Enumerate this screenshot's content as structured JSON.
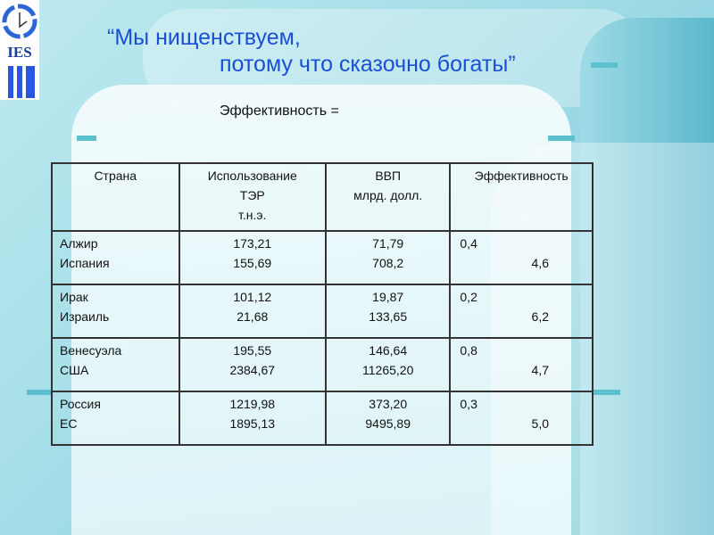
{
  "title": {
    "line1": "“Мы нищенствуем,",
    "line2": "потому что сказочно богаты”"
  },
  "subtitle": "Эффективность =",
  "logo": {
    "text": "IES"
  },
  "table": {
    "headers": [
      [
        "Страна"
      ],
      [
        "Использование",
        "ТЭР",
        "т.н.э."
      ],
      [
        "ВВП",
        "млрд. долл."
      ],
      [
        "Эффективность"
      ]
    ],
    "rows": [
      {
        "countries": [
          "Алжир",
          "Испания"
        ],
        "ter": [
          "173,21",
          "155,69"
        ],
        "gdp": [
          "71,79",
          "708,2"
        ],
        "eff": [
          "0,4",
          "4,6"
        ]
      },
      {
        "countries": [
          "Ирак",
          "Израиль"
        ],
        "ter": [
          "101,12",
          "21,68"
        ],
        "gdp": [
          "19,87",
          "133,65"
        ],
        "eff": [
          "0,2",
          "6,2"
        ]
      },
      {
        "countries": [
          "Венесуэла",
          "США"
        ],
        "ter": [
          "195,55",
          "2384,67"
        ],
        "gdp": [
          "146,64",
          "11265,20"
        ],
        "eff": [
          "0,8",
          "4,7"
        ]
      },
      {
        "countries": [
          "Россия",
          "ЕС"
        ],
        "ter": [
          "1219,98",
          "1895,13"
        ],
        "gdp": [
          "373,20",
          "9495,89"
        ],
        "eff": [
          "0,3",
          "5,0"
        ]
      }
    ]
  }
}
